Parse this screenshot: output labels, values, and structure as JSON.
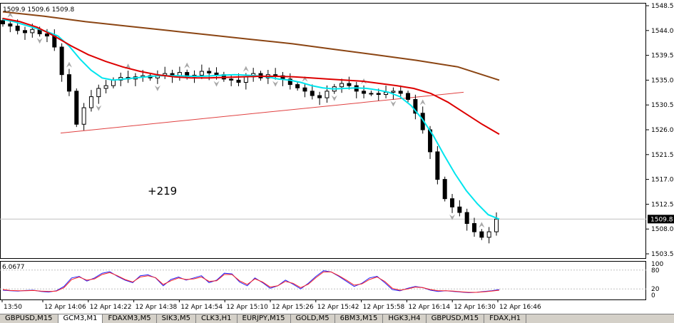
{
  "chart_data": [
    {
      "type": "candlestick",
      "ohlc_label": "1509.9 1509.6 1509.8",
      "y_ticks": [
        "1548.5",
        "1544.0",
        "1539.5",
        "1535.0",
        "1530.5",
        "1526.0",
        "1521.5",
        "1517.0",
        "1512.5",
        "1508.0",
        "1503.5"
      ],
      "ylim": [
        1503.5,
        1548.5
      ],
      "x_ticks": [
        "13:50",
        "12 Apr 14:06",
        "12 Apr 14:22",
        "12 Apr 14:38",
        "12 Apr 14:54",
        "12 Apr 15:10",
        "12 Apr 15:26",
        "12 Apr 15:42",
        "12 Apr 15:58",
        "12 Apr 16:14",
        "12 Apr 16:30",
        "12 Apr 16:46"
      ],
      "last_price": "1509.8",
      "annotation": "+219",
      "close_values": [
        1545.2,
        1544.8,
        1544.0,
        1543.6,
        1544.2,
        1543.4,
        1543.0,
        1541.0,
        1536.0,
        1533.0,
        1527.0,
        1530.0,
        1532.0,
        1533.5,
        1534.0,
        1535.0,
        1535.5,
        1535.2,
        1535.6,
        1535.8,
        1535.4,
        1535.9,
        1536.2,
        1535.8,
        1536.4,
        1535.6,
        1535.9,
        1536.6,
        1536.3,
        1536.0,
        1535.2,
        1535.0,
        1534.6,
        1535.6,
        1536.2,
        1535.4,
        1536.0,
        1535.8,
        1535.2,
        1534.2,
        1533.6,
        1533.0,
        1532.2,
        1531.8,
        1533.0,
        1533.8,
        1534.4,
        1534.0,
        1533.0,
        1532.6,
        1532.6,
        1532.4,
        1532.8,
        1533.0,
        1532.6,
        1531.5,
        1529.0,
        1526.0,
        1522.0,
        1517.0,
        1513.5,
        1512.0,
        1511.0,
        1509.0,
        1507.5,
        1506.5,
        1507.5,
        1509.8
      ],
      "series": [
        {
          "name": "",
          "color": "#00e5ee",
          "values": [
            1546.0,
            1545.6,
            1545.0,
            1544.4,
            1543.8,
            1543.0,
            1541.2,
            1538.8,
            1536.8,
            1535.4,
            1535.0,
            1535.2,
            1535.4,
            1535.6,
            1535.8,
            1535.8,
            1535.8,
            1535.7,
            1535.7,
            1535.8,
            1535.9,
            1536.0,
            1535.9,
            1535.8,
            1535.6,
            1535.2,
            1535.0,
            1534.6,
            1534.0,
            1533.6,
            1533.4,
            1533.5,
            1533.6,
            1533.5,
            1533.2,
            1532.8,
            1532.0,
            1530.4,
            1528.0,
            1525.0,
            1521.4,
            1518.0,
            1515.0,
            1512.6,
            1510.6,
            1509.8
          ]
        },
        {
          "name": "",
          "color": "#dd0000",
          "values": [
            1546.2,
            1545.6,
            1544.6,
            1543.0,
            1541.2,
            1539.6,
            1538.4,
            1537.4,
            1536.6,
            1536.0,
            1535.6,
            1535.4,
            1535.4,
            1535.5,
            1535.6,
            1535.7,
            1535.7,
            1535.6,
            1535.4,
            1535.2,
            1535.0,
            1534.8,
            1534.4,
            1534.0,
            1533.5,
            1532.6,
            1531.0,
            1529.0,
            1527.0,
            1525.2
          ]
        },
        {
          "name": "",
          "color": "#8b4513",
          "values": [
            1547.4,
            1546.6,
            1545.6,
            1544.8,
            1544.0,
            1543.2,
            1542.4,
            1541.6,
            1540.6,
            1539.6,
            1538.6,
            1537.4,
            1535.0
          ]
        }
      ],
      "trendline": {
        "from": 1525.4,
        "to": 1532.8,
        "color": "#e04040"
      }
    },
    {
      "type": "line",
      "value_label": "6.0677",
      "y_ticks": [
        "100",
        "80",
        "20",
        "0"
      ],
      "ylim": [
        0,
        100
      ],
      "series": [
        {
          "name": "",
          "color": "#2020ff",
          "values": [
            16,
            14,
            13,
            15,
            16,
            12,
            10,
            14,
            28,
            55,
            60,
            45,
            55,
            70,
            75,
            60,
            48,
            40,
            62,
            65,
            55,
            30,
            50,
            58,
            48,
            55,
            62,
            40,
            48,
            70,
            68,
            42,
            30,
            55,
            40,
            22,
            30,
            48,
            35,
            20,
            38,
            60,
            78,
            74,
            60,
            44,
            28,
            38,
            55,
            60,
            40,
            18,
            14,
            22,
            28,
            24,
            16,
            12,
            14,
            12,
            10,
            8,
            9,
            12,
            14,
            18
          ]
        },
        {
          "name": "",
          "color": "#ff2020",
          "values": [
            18,
            15,
            14,
            14,
            15,
            13,
            12,
            13,
            24,
            50,
            58,
            48,
            52,
            66,
            72,
            62,
            50,
            42,
            58,
            62,
            56,
            34,
            46,
            55,
            50,
            52,
            58,
            44,
            46,
            66,
            66,
            46,
            34,
            52,
            42,
            26,
            30,
            44,
            38,
            24,
            35,
            56,
            74,
            74,
            62,
            48,
            32,
            36,
            50,
            58,
            44,
            22,
            16,
            20,
            26,
            24,
            18,
            14,
            14,
            13,
            11,
            9,
            9,
            11,
            13,
            16
          ]
        }
      ]
    }
  ],
  "tabs": [
    {
      "label": "GBPUSD,M15",
      "active": false
    },
    {
      "label": "GCM3,M1",
      "active": true
    },
    {
      "label": "FDAXM3,M5",
      "active": false
    },
    {
      "label": "SIK3,M5",
      "active": false
    },
    {
      "label": "CLK3,H1",
      "active": false
    },
    {
      "label": "EURJPY,M15",
      "active": false
    },
    {
      "label": "GOLD,M5",
      "active": false
    },
    {
      "label": "6BM3,M15",
      "active": false
    },
    {
      "label": "HGK3,H4",
      "active": false
    },
    {
      "label": "GBPUSD,M15",
      "active": false
    },
    {
      "label": "FDAX,H1",
      "active": false
    }
  ]
}
